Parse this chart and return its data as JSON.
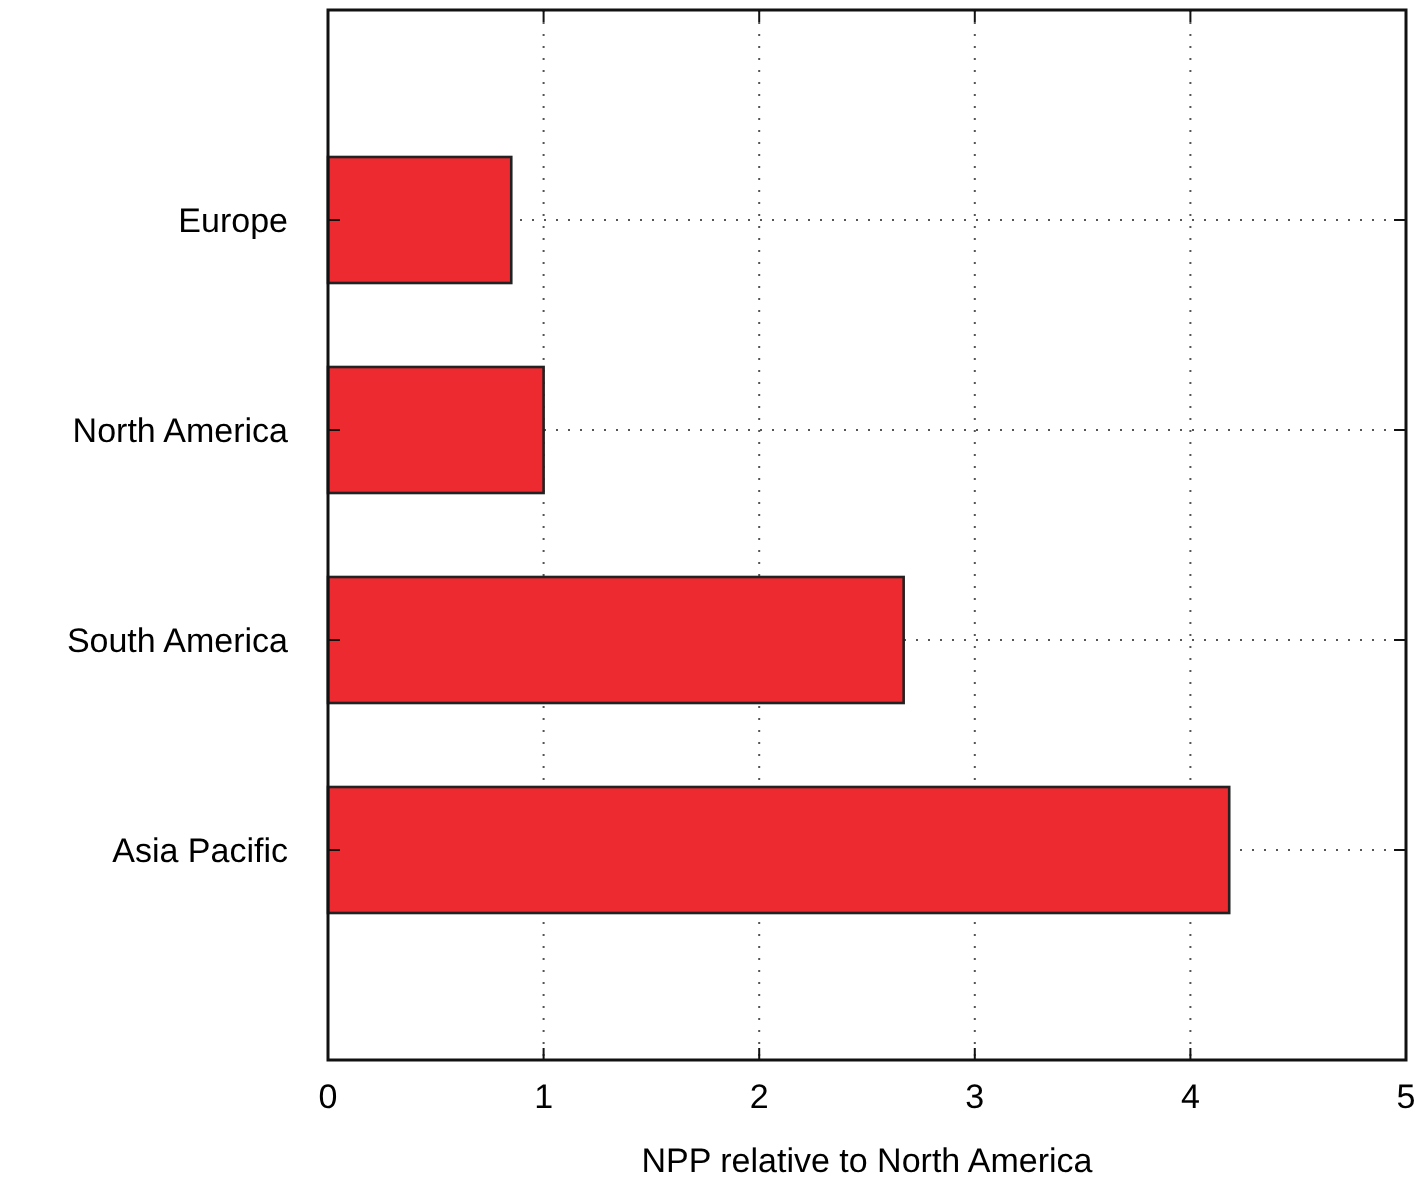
{
  "chart_data": {
    "type": "bar",
    "orientation": "horizontal",
    "xlabel": "NPP relative to North America",
    "categories": [
      "Europe",
      "North America",
      "South America",
      "Asia Pacific"
    ],
    "values": [
      0.85,
      1.0,
      2.67,
      4.18
    ],
    "color": "#ec2a2f",
    "xlim": [
      0,
      5
    ],
    "xticks": [
      0,
      1,
      2,
      3,
      4,
      5
    ],
    "grid": true
  }
}
